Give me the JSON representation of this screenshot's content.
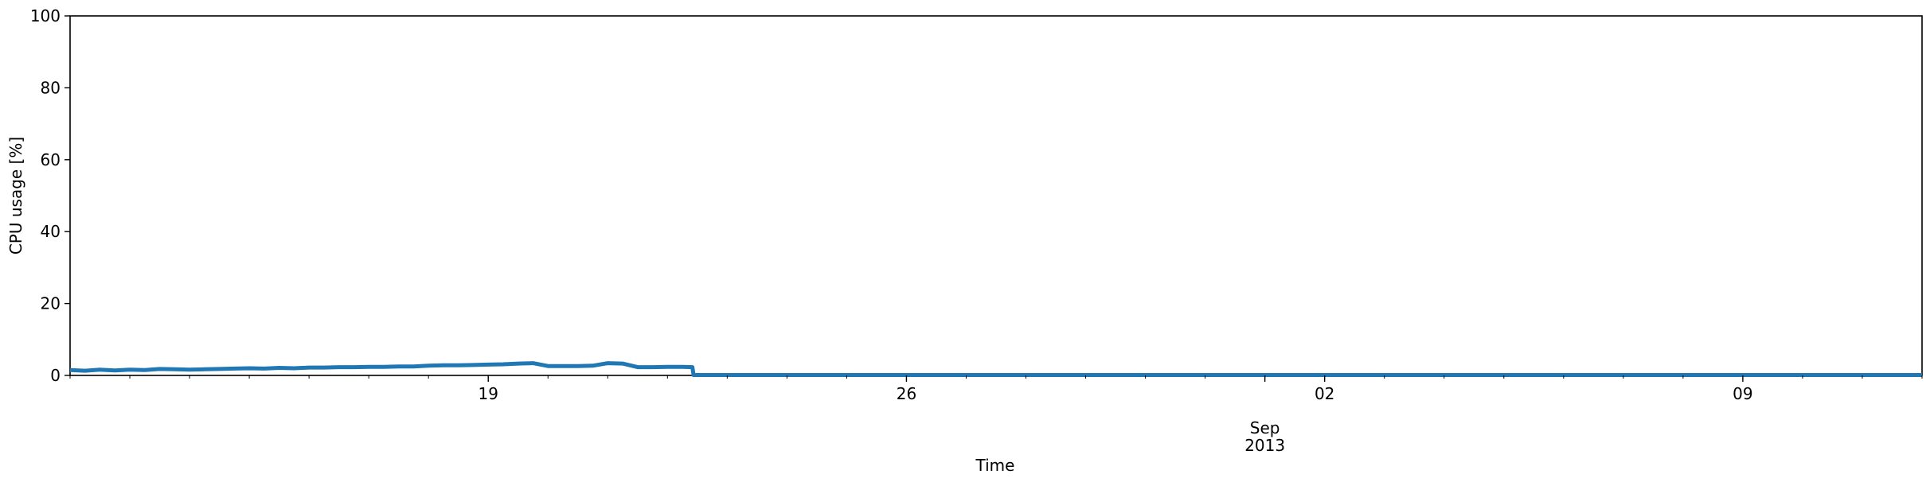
{
  "chart_data": {
    "type": "line",
    "title": "",
    "xlabel": "Time",
    "ylabel": "CPU usage [%]",
    "ylim": [
      0,
      100
    ],
    "xlim": [
      "2013-08-12",
      "2013-09-12"
    ],
    "yticks": [
      0,
      20,
      40,
      60,
      80,
      100
    ],
    "xticks_major": [
      {
        "date": "2013-08-19",
        "label": "19"
      },
      {
        "date": "2013-08-26",
        "label": "26"
      },
      {
        "date": "2013-09-02",
        "label": "02"
      },
      {
        "date": "2013-09-09",
        "label": "09"
      }
    ],
    "month_label": {
      "date": "2013-09-01",
      "month": "Sep",
      "year": "2013"
    },
    "grid": false,
    "legend": "none",
    "series": [
      {
        "color": "#1f77b4",
        "x": [
          "2013-08-12 00:00",
          "2013-08-12 06:00",
          "2013-08-12 12:00",
          "2013-08-12 18:00",
          "2013-08-13 00:00",
          "2013-08-13 06:00",
          "2013-08-13 12:00",
          "2013-08-13 18:00",
          "2013-08-14 00:00",
          "2013-08-14 06:00",
          "2013-08-14 12:00",
          "2013-08-14 18:00",
          "2013-08-15 00:00",
          "2013-08-15 06:00",
          "2013-08-15 12:00",
          "2013-08-15 18:00",
          "2013-08-16 00:00",
          "2013-08-16 06:00",
          "2013-08-16 12:00",
          "2013-08-16 18:00",
          "2013-08-17 00:00",
          "2013-08-17 06:00",
          "2013-08-17 12:00",
          "2013-08-17 18:00",
          "2013-08-18 00:00",
          "2013-08-18 06:00",
          "2013-08-18 12:00",
          "2013-08-18 18:00",
          "2013-08-19 00:00",
          "2013-08-19 06:00",
          "2013-08-19 12:00",
          "2013-08-19 18:00",
          "2013-08-20 00:00",
          "2013-08-20 06:00",
          "2013-08-20 12:00",
          "2013-08-20 18:00",
          "2013-08-21 00:00",
          "2013-08-21 06:00",
          "2013-08-21 12:00",
          "2013-08-21 18:00",
          "2013-08-22 00:00",
          "2013-08-22 06:00",
          "2013-08-22 10:00",
          "2013-08-22 10:30",
          "2013-09-12 00:00"
        ],
        "y": [
          1.5,
          1.3,
          1.6,
          1.4,
          1.6,
          1.5,
          1.8,
          1.7,
          1.6,
          1.7,
          1.8,
          1.9,
          2.0,
          1.9,
          2.1,
          2.0,
          2.2,
          2.2,
          2.3,
          2.3,
          2.4,
          2.4,
          2.5,
          2.5,
          2.7,
          2.8,
          2.8,
          2.9,
          3.0,
          3.1,
          3.3,
          3.4,
          2.6,
          2.6,
          2.6,
          2.7,
          3.4,
          3.3,
          2.3,
          2.3,
          2.4,
          2.4,
          2.3,
          0.1,
          0.1
        ]
      }
    ]
  }
}
